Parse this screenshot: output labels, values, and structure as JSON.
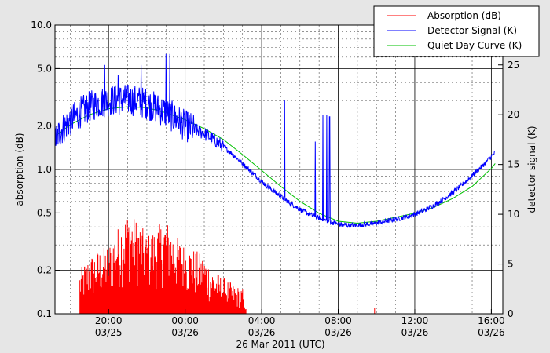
{
  "chart_data": {
    "type": "line",
    "xlabel": "26 Mar 2011 (UTC)",
    "ylabel_left": "absorption (dB)",
    "ylabel_right": "detector signal (K)",
    "x_unit": "hours since 2011-03-25 00:00 UTC",
    "xlim": [
      17.2,
      40.6
    ],
    "x_ticks": [
      {
        "x": 20,
        "time": "20:00",
        "date": "03/25"
      },
      {
        "x": 24,
        "time": "00:00",
        "date": "03/26"
      },
      {
        "x": 28,
        "time": "04:00",
        "date": "03/26"
      },
      {
        "x": 32,
        "time": "08:00",
        "date": "03/26"
      },
      {
        "x": 36,
        "time": "12:00",
        "date": "03/26"
      },
      {
        "x": 40,
        "time": "16:00",
        "date": "03/26"
      }
    ],
    "y_left": {
      "scale": "log",
      "lim": [
        0.1,
        10.0
      ],
      "ticks": [
        {
          "v": 0.1,
          "label": "0.1"
        },
        {
          "v": 0.2,
          "label": "0.2"
        },
        {
          "v": 0.5,
          "label": "0.5"
        },
        {
          "v": 1.0,
          "label": "1.0"
        },
        {
          "v": 2.0,
          "label": "2.0"
        },
        {
          "v": 5.0,
          "label": "5.0"
        },
        {
          "v": 10.0,
          "label": "10.0"
        }
      ]
    },
    "y_right": {
      "scale": "linear",
      "lim": [
        0,
        29
      ],
      "ticks": [
        {
          "v": 0,
          "label": "0"
        },
        {
          "v": 5,
          "label": "5"
        },
        {
          "v": 10,
          "label": "10"
        },
        {
          "v": 15,
          "label": "15"
        },
        {
          "v": 20,
          "label": "20"
        },
        {
          "v": 25,
          "label": "25"
        }
      ]
    },
    "grid": true,
    "legend_position": "top-right",
    "series": [
      {
        "name": "Absorption (dB)",
        "color": "#ff0000",
        "axis": "left",
        "x": [
          18.5,
          19.0,
          19.5,
          20.0,
          20.5,
          21.0,
          21.5,
          22.0,
          22.5,
          23.0,
          23.5,
          24.0,
          24.5,
          25.0,
          25.5,
          26.0,
          26.5,
          27.0,
          27.2,
          33.9,
          34.0
        ],
        "y": [
          0.2,
          0.25,
          0.28,
          0.3,
          0.4,
          0.5,
          0.45,
          0.35,
          0.4,
          0.45,
          0.35,
          0.3,
          0.28,
          0.25,
          0.2,
          0.18,
          0.16,
          0.15,
          0.12,
          0.11,
          0.11
        ]
      },
      {
        "name": "Detector Signal (K)",
        "color": "#0000ff",
        "axis": "right",
        "x": [
          17.2,
          17.5,
          18.0,
          18.5,
          19.0,
          19.5,
          20.0,
          20.5,
          21.0,
          21.5,
          22.0,
          22.5,
          23.0,
          23.5,
          24.0,
          24.5,
          25.0,
          25.5,
          26.0,
          26.5,
          27.0,
          27.5,
          28.0,
          28.5,
          29.0,
          29.5,
          30.0,
          30.5,
          31.0,
          31.5,
          32.0,
          32.5,
          33.0,
          33.5,
          34.0,
          34.5,
          35.0,
          35.5,
          36.0,
          36.5,
          37.0,
          37.5,
          38.0,
          38.5,
          39.0,
          39.5,
          40.0,
          40.2
        ],
        "y": [
          17.5,
          18.4,
          19.4,
          20.2,
          20.8,
          21.2,
          21.4,
          21.5,
          21.5,
          21.4,
          21.1,
          20.7,
          20.2,
          19.6,
          18.9,
          18.5,
          18.1,
          17.5,
          16.8,
          16.0,
          15.1,
          14.2,
          13.3,
          12.5,
          11.8,
          11.1,
          10.5,
          10.0,
          9.6,
          9.3,
          9.0,
          8.9,
          8.9,
          9.0,
          9.1,
          9.3,
          9.5,
          9.7,
          10.0,
          10.4,
          10.9,
          11.5,
          12.2,
          13.0,
          13.9,
          14.8,
          15.8,
          16.2
        ],
        "spikes": [
          {
            "x": 19.8,
            "y": 25.0
          },
          {
            "x": 20.5,
            "y": 24.0
          },
          {
            "x": 21.7,
            "y": 25.0
          },
          {
            "x": 23.0,
            "y": 26.1
          },
          {
            "x": 23.2,
            "y": 26.1
          },
          {
            "x": 29.2,
            "y": 21.5
          },
          {
            "x": 30.8,
            "y": 17.3
          },
          {
            "x": 31.2,
            "y": 20.0
          },
          {
            "x": 31.4,
            "y": 20.0
          },
          {
            "x": 31.55,
            "y": 19.8
          }
        ]
      },
      {
        "name": "Quiet Day Curve (K)",
        "color": "#00c000",
        "axis": "right",
        "x": [
          17.2,
          18.0,
          19.0,
          20.0,
          21.0,
          22.0,
          23.0,
          24.0,
          25.0,
          26.0,
          27.0,
          28.0,
          29.0,
          30.0,
          31.0,
          32.0,
          33.0,
          34.0,
          35.0,
          36.0,
          37.0,
          38.0,
          39.0,
          40.0,
          40.2
        ],
        "y": [
          17.8,
          19.0,
          20.0,
          20.6,
          20.8,
          20.7,
          20.2,
          19.5,
          18.6,
          17.5,
          16.0,
          14.4,
          12.8,
          11.3,
          10.1,
          9.3,
          9.1,
          9.3,
          9.7,
          10.1,
          10.7,
          11.6,
          12.8,
          14.6,
          15.1
        ]
      }
    ]
  }
}
